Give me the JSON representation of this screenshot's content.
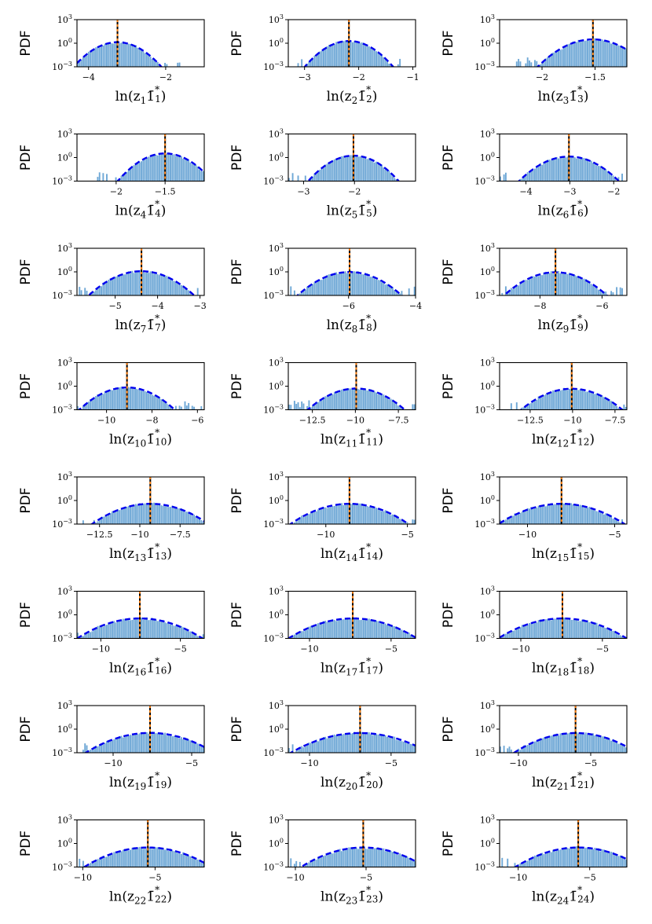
{
  "figure": {
    "ylabel": "PDF",
    "yticks": [
      {
        "base": "10",
        "exp": "3"
      },
      {
        "base": "10",
        "exp": "0"
      },
      {
        "base": "10",
        "exp": "−3"
      }
    ],
    "colors": {
      "hist": "#6fa8d6",
      "fit": "#0000ee",
      "mean_line": "#000000",
      "mode_line": "#ff7f0e",
      "axes": "#000000"
    }
  },
  "chart_data": [
    {
      "type": "histogram",
      "xlabel_sub": "1",
      "xlim": [
        -4.3,
        -1.0
      ],
      "xticks": [
        -4,
        -2
      ],
      "mu": -3.25,
      "sigma": 0.3,
      "ylim_log10": [
        -3,
        3
      ],
      "legend": "none"
    },
    {
      "type": "histogram",
      "xlabel_sub": "2",
      "xlim": [
        -3.3,
        -0.95
      ],
      "xticks": [
        -3,
        -2,
        -1
      ],
      "mu": -2.18,
      "sigma": 0.21,
      "ylim_log10": [
        -3,
        3
      ],
      "legend": "none"
    },
    {
      "type": "histogram",
      "xlabel_sub": "3",
      "xlim": [
        -2.4,
        -1.2
      ],
      "xticks": [
        -2.0,
        -1.5
      ],
      "mu": -1.52,
      "sigma": 0.13,
      "ylim_log10": [
        -3,
        3
      ],
      "legend": "none"
    },
    {
      "type": "histogram",
      "xlabel_sub": "4",
      "xlim": [
        -2.4,
        -1.1
      ],
      "xticks": [
        -2.0,
        -1.5
      ],
      "mu": -1.5,
      "sigma": 0.12,
      "ylim_log10": [
        -3,
        3
      ],
      "legend": "none"
    },
    {
      "type": "histogram",
      "xlabel_sub": "5",
      "xlim": [
        -3.3,
        -0.8
      ],
      "xticks": [
        -3,
        -2
      ],
      "mu": -2.02,
      "sigma": 0.23,
      "ylim_log10": [
        -3,
        3
      ],
      "legend": "none"
    },
    {
      "type": "histogram",
      "xlabel_sub": "6",
      "xlim": [
        -4.6,
        -1.7
      ],
      "xticks": [
        -4,
        -3,
        -2
      ],
      "mu": -3.02,
      "sigma": 0.3,
      "ylim_log10": [
        -3,
        3
      ],
      "legend": "none"
    },
    {
      "type": "histogram",
      "xlabel_sub": "7",
      "xlim": [
        -5.9,
        -2.9
      ],
      "xticks": [
        -5,
        -4,
        -3
      ],
      "mu": -4.38,
      "sigma": 0.33,
      "ylim_log10": [
        -3,
        3
      ],
      "legend": "none"
    },
    {
      "type": "histogram",
      "xlabel_sub": "8",
      "xlim": [
        -7.8,
        -4.0
      ],
      "xticks": [
        -6,
        -4
      ],
      "mu": -5.97,
      "sigma": 0.42,
      "ylim_log10": [
        -3,
        3
      ],
      "legend": "none"
    },
    {
      "type": "histogram",
      "xlabel_sub": "9",
      "xlim": [
        -9.3,
        -5.2
      ],
      "xticks": [
        -8,
        -6
      ],
      "mu": -7.5,
      "sigma": 0.45,
      "ylim_log10": [
        -3,
        3
      ],
      "legend": "none"
    },
    {
      "type": "histogram",
      "xlabel_sub": "10",
      "xlim": [
        -11.3,
        -5.7
      ],
      "xticks": [
        -10,
        -8,
        -6
      ],
      "mu": -9.1,
      "sigma": 0.58,
      "ylim_log10": [
        -3,
        3
      ],
      "legend": "none"
    },
    {
      "type": "histogram",
      "xlabel_sub": "11",
      "xlim": [
        -13.9,
        -6.5
      ],
      "xticks": [
        -12.5,
        -10.0,
        -7.5
      ],
      "mu": -9.95,
      "sigma": 0.8,
      "ylim_log10": [
        -3,
        3
      ],
      "legend": "none"
    },
    {
      "type": "histogram",
      "xlabel_sub": "12",
      "xlim": [
        -14.3,
        -6.8
      ],
      "xticks": [
        -12.5,
        -10.0,
        -7.5
      ],
      "mu": -10.05,
      "sigma": 0.85,
      "ylim_log10": [
        -3,
        3
      ],
      "legend": "none"
    },
    {
      "type": "histogram",
      "xlabel_sub": "13",
      "xlim": [
        -13.9,
        -6.0
      ],
      "xticks": [
        -12.5,
        -10.0,
        -7.5
      ],
      "mu": -9.35,
      "sigma": 1.05,
      "ylim_log10": [
        -3,
        3
      ],
      "legend": "none"
    },
    {
      "type": "histogram",
      "xlabel_sub": "14",
      "xlim": [
        -12.3,
        -4.5
      ],
      "xticks": [
        -10,
        -5
      ],
      "mu": -8.55,
      "sigma": 1.05,
      "ylim_log10": [
        -3,
        3
      ],
      "legend": "none"
    },
    {
      "type": "histogram",
      "xlabel_sub": "15",
      "xlim": [
        -11.6,
        -4.3
      ],
      "xticks": [
        -10,
        -5
      ],
      "mu": -8.05,
      "sigma": 1.05,
      "ylim_log10": [
        -3,
        3
      ],
      "legend": "none"
    },
    {
      "type": "histogram",
      "xlabel_sub": "16",
      "xlim": [
        -11.5,
        -3.5
      ],
      "xticks": [
        -10,
        -5
      ],
      "mu": -7.55,
      "sigma": 1.15,
      "ylim_log10": [
        -3,
        3
      ],
      "legend": "none"
    },
    {
      "type": "histogram",
      "xlabel_sub": "17",
      "xlim": [
        -11.3,
        -3.5
      ],
      "xticks": [
        -10,
        -5
      ],
      "mu": -7.35,
      "sigma": 1.15,
      "ylim_log10": [
        -3,
        3
      ],
      "legend": "none"
    },
    {
      "type": "histogram",
      "xlabel_sub": "18",
      "xlim": [
        -11.3,
        -3.5
      ],
      "xticks": [
        -10,
        -5
      ],
      "mu": -7.45,
      "sigma": 1.15,
      "ylim_log10": [
        -3,
        3
      ],
      "legend": "none"
    },
    {
      "type": "histogram",
      "xlabel_sub": "19",
      "xlim": [
        -12.3,
        -4.2
      ],
      "xticks": [
        -10,
        -5
      ],
      "mu": -7.65,
      "sigma": 1.2,
      "ylim_log10": [
        -3,
        3
      ],
      "legend": "none"
    },
    {
      "type": "histogram",
      "xlabel_sub": "20",
      "xlim": [
        -11.3,
        -3.5
      ],
      "xticks": [
        -10,
        -5
      ],
      "mu": -6.9,
      "sigma": 1.25,
      "ylim_log10": [
        -3,
        3
      ],
      "legend": "none"
    },
    {
      "type": "histogram",
      "xlabel_sub": "21",
      "xlim": [
        -11.3,
        -2.5
      ],
      "xticks": [
        -10,
        -5
      ],
      "mu": -6.05,
      "sigma": 1.25,
      "ylim_log10": [
        -3,
        3
      ],
      "legend": "none"
    },
    {
      "type": "histogram",
      "xlabel_sub": "22",
      "xlim": [
        -10.4,
        -1.6
      ],
      "xticks": [
        -10,
        -5
      ],
      "mu": -5.5,
      "sigma": 1.3,
      "ylim_log10": [
        -3,
        3
      ],
      "legend": "none"
    },
    {
      "type": "histogram",
      "xlabel_sub": "23",
      "xlim": [
        -10.5,
        -1.5
      ],
      "xticks": [
        -10,
        -5
      ],
      "mu": -5.2,
      "sigma": 1.3,
      "ylim_log10": [
        -3,
        3
      ],
      "legend": "none"
    },
    {
      "type": "histogram",
      "xlabel_sub": "24",
      "xlim": [
        -11.3,
        -2.4
      ],
      "xticks": [
        -10,
        -5
      ],
      "mu": -5.8,
      "sigma": 1.3,
      "ylim_log10": [
        -3,
        3
      ],
      "legend": "none"
    }
  ]
}
